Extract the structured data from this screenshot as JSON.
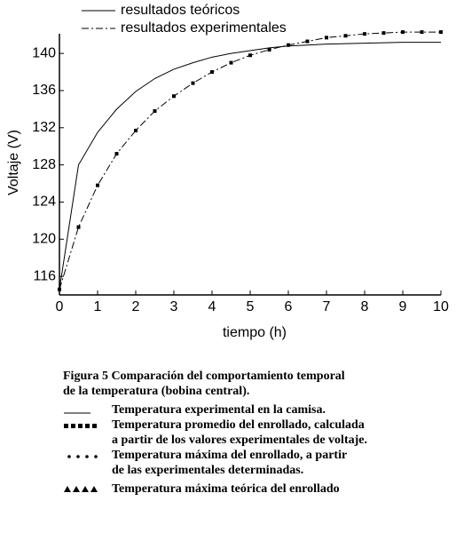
{
  "chart_data": {
    "type": "line",
    "x_label": "tiempo (h)",
    "y_label": "Voltaje (V)",
    "x": [
      0,
      0.5,
      1,
      1.5,
      2,
      2.5,
      3,
      3.5,
      4,
      4.5,
      5,
      5.5,
      6,
      6.5,
      7,
      7.5,
      8,
      8.5,
      9,
      9.5,
      10
    ],
    "series": [
      {
        "name": "resultados teóricos",
        "color": "#000000",
        "style": "solid",
        "markers": false,
        "values": [
          114.6,
          128.0,
          131.5,
          134.0,
          135.9,
          137.3,
          138.3,
          139.0,
          139.6,
          140.0,
          140.3,
          140.6,
          140.8,
          140.9,
          141.0,
          141.05,
          141.1,
          141.15,
          141.2,
          141.2,
          141.2
        ]
      },
      {
        "name": "resultados experimentales",
        "color": "#000000",
        "style": "dashdot",
        "markers": true,
        "values": [
          114.6,
          121.3,
          125.8,
          129.2,
          131.7,
          133.8,
          135.4,
          136.8,
          138.0,
          139.0,
          139.8,
          140.4,
          140.9,
          141.3,
          141.7,
          141.9,
          142.1,
          142.2,
          142.3,
          142.3,
          142.3
        ]
      }
    ],
    "xlim": [
      0,
      10
    ],
    "xticks": [
      0,
      1,
      2,
      3,
      4,
      5,
      6,
      7,
      8,
      9,
      10
    ],
    "ylim": [
      114,
      142.5
    ],
    "yticks": [
      116,
      120,
      124,
      128,
      132,
      136,
      140
    ],
    "legend": "top-left",
    "grid": false
  },
  "caption": {
    "title": [
      "Figura 5 Comparación del comportamiento temporal",
      "de la temperatura (bobina central)."
    ],
    "entries": [
      [
        "Temperatura   experimental  en  la  camisa."
      ],
      [
        "Temperatura promedio del enrollado, calculada",
        "a partir de los valores experimentales de voltaje."
      ],
      [
        "Temperatura máxima del enrollado, a partir",
        "de  las  experimentales  determinadas."
      ],
      [
        "Temperatura máxima teórica del enrollado"
      ]
    ]
  }
}
